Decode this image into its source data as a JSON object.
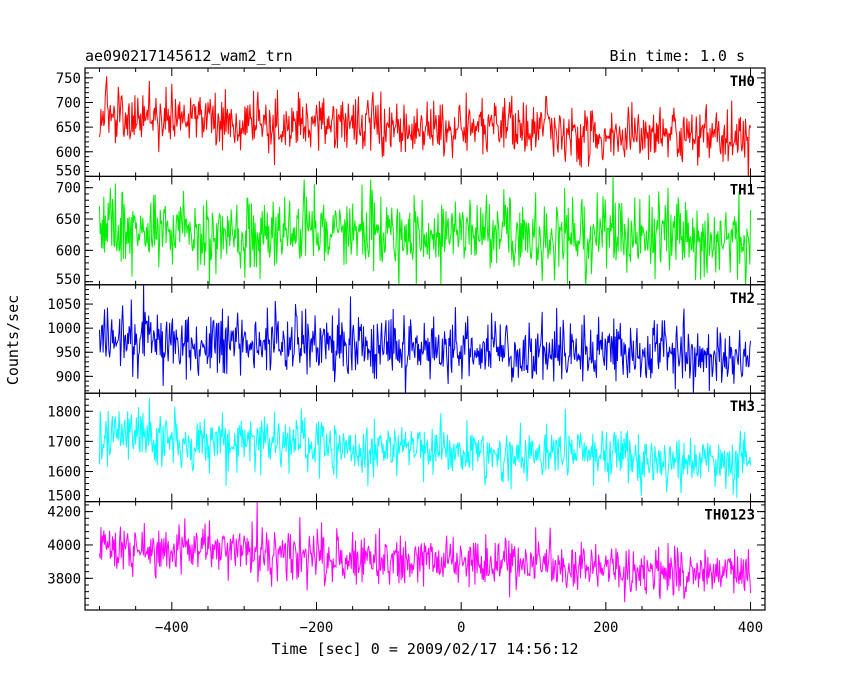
{
  "header": {
    "title": "ae090217145612_wam2_trn",
    "bin_time": "Bin time: 1.0 s"
  },
  "chart_data": {
    "type": "line",
    "xlabel": "Time [sec] 0 = 2009/02/17 14:56:12",
    "ylabel": "Counts/sec",
    "xlim": [
      -520,
      420
    ],
    "x_ticks": [
      -400,
      -200,
      0,
      200,
      400
    ],
    "x_range": [
      -500,
      400
    ],
    "panels": [
      {
        "label": "TH0",
        "color": "#ff0000",
        "ylim": [
          550,
          770
        ],
        "y_ticks": [
          550,
          600,
          650,
          700,
          750
        ],
        "start_mean": 670,
        "end_mean": 630,
        "noise": 28
      },
      {
        "label": "TH1",
        "color": "#00ee00",
        "ylim": [
          545,
          718
        ],
        "y_ticks": [
          550,
          600,
          650,
          700
        ],
        "start_mean": 635,
        "end_mean": 620,
        "noise": 30
      },
      {
        "label": "TH2",
        "color": "#0000ee",
        "ylim": [
          865,
          1090
        ],
        "y_ticks": [
          900,
          950,
          1000,
          1050
        ],
        "start_mean": 975,
        "end_mean": 945,
        "noise": 33
      },
      {
        "label": "TH3",
        "color": "#00ffff",
        "ylim": [
          1500,
          1860
        ],
        "y_ticks": [
          1500,
          1600,
          1700,
          1800
        ],
        "start_mean": 1720,
        "end_mean": 1630,
        "noise": 45
      },
      {
        "label": "TH0123",
        "color": "#ff00ff",
        "ylim": [
          3610,
          4260
        ],
        "y_ticks": [
          3800,
          4000,
          4200
        ],
        "start_mean": 3990,
        "end_mean": 3830,
        "noise": 75
      }
    ]
  }
}
